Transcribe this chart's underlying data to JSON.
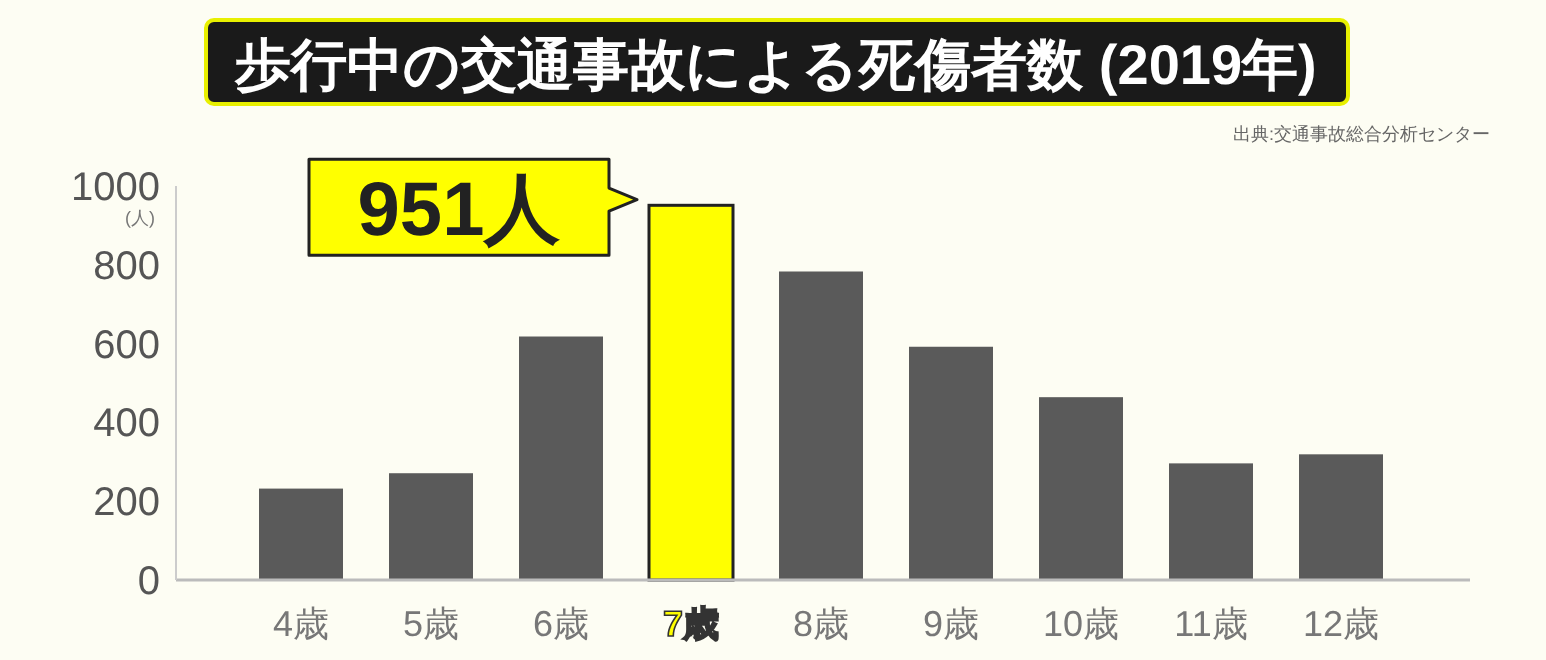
{
  "chart_data": {
    "type": "bar",
    "title": "歩行中の交通事故による死傷者数 (2019年)",
    "ylabel": "(人)",
    "categories": [
      "4歳",
      "5歳",
      "6歳",
      "7歳",
      "8歳",
      "9歳",
      "10歳",
      "11歳",
      "12歳"
    ],
    "values": [
      232,
      271,
      618,
      951,
      783,
      592,
      464,
      296,
      319
    ],
    "colors": [
      "#5a5a5a",
      "#5a5a5a",
      "#5a5a5a",
      "#ffff00",
      "#5a5a5a",
      "#5a5a5a",
      "#5a5a5a",
      "#5a5a5a",
      "#5a5a5a"
    ],
    "ylim": [
      0,
      1000
    ],
    "yticks": [
      0,
      200,
      400,
      600,
      800,
      1000
    ],
    "annotations": [
      {
        "text": "951人",
        "x": "7歳",
        "y": 951
      },
      "出典:交通事故総合分析センター"
    ]
  }
}
